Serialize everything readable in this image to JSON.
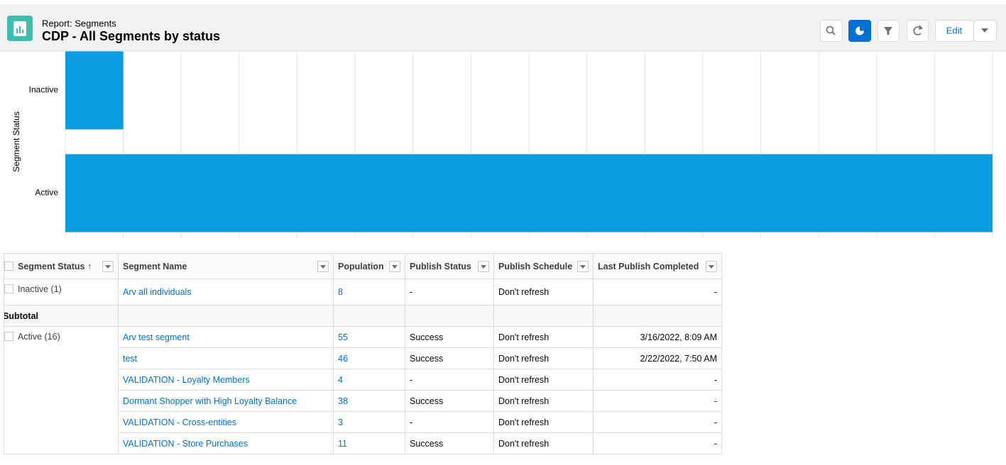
{
  "header": {
    "subtitle": "Report: Segments",
    "title": "CDP - All Segments by status",
    "edit_button": "Edit"
  },
  "chart_data": {
    "type": "bar",
    "orientation": "horizontal",
    "ylabel": "Segment Status",
    "categories": [
      "Inactive",
      "Active"
    ],
    "values": [
      1,
      16
    ],
    "color": "#0b9de0",
    "xlim": [
      0,
      16
    ],
    "xticks": [
      0,
      1,
      2,
      3,
      4,
      5,
      6,
      7,
      8,
      9,
      10,
      11,
      12,
      13,
      14,
      15,
      16
    ],
    "grid": true
  },
  "table": {
    "columns": [
      "Segment Status",
      "Segment Name",
      "Population",
      "Publish Status",
      "Publish Schedule",
      "Last Publish Completed"
    ],
    "groups": [
      {
        "label": "Inactive (1)",
        "rows": [
          [
            "Arv all individuals",
            8,
            "-",
            "Don't refresh",
            "-"
          ]
        ],
        "subtotal": "Subtotal"
      },
      {
        "label": "Active (16)",
        "rows": [
          [
            "Arv test segment",
            55,
            "Success",
            "Don't refresh",
            "3/16/2022, 8:09 AM"
          ],
          [
            "test",
            46,
            "Success",
            "Don't refresh",
            "2/22/2022, 7:50 AM"
          ],
          [
            "VALIDATION - Loyalty Members",
            4,
            "-",
            "Don't refresh",
            "-"
          ],
          [
            "Dormant Shopper with High Loyalty Balance",
            38,
            "Success",
            "Don't refresh",
            "-"
          ],
          [
            "VALIDATION - Cross-entities",
            3,
            "-",
            "Don't refresh",
            "-"
          ],
          [
            "VALIDATION - Store Purchases",
            11,
            "Success",
            "Don't refresh",
            "-"
          ]
        ]
      }
    ]
  }
}
